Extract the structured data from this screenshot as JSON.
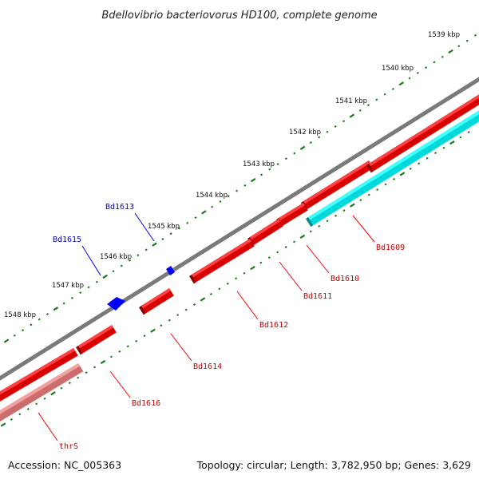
{
  "title": "Bdellovibrio bacteriovorus HD100, complete genome",
  "footer": {
    "accession": "Accession: NC_005363",
    "summary": "Topology: circular; Length: 3,782,950 bp; Genes: 3,629"
  },
  "colors": {
    "backbone": "#7a7a7a",
    "forward_gene": "#ff0000",
    "reverse_gene": "#0000ff",
    "cds_reverse": "#00ffff",
    "rna_gene": "#f08080",
    "tick": "#1a7a1a",
    "label_forward": "#cc0000",
    "label_reverse": "#0000cc"
  },
  "ruler": {
    "unit": "kbp",
    "labels": [
      "1539 kbp",
      "1540 kbp",
      "1541 kbp",
      "1542 kbp",
      "1543 kbp",
      "1544 kbp",
      "1545 kbp",
      "1546 kbp",
      "1547 kbp",
      "1548 kbp"
    ]
  },
  "genes": [
    {
      "name": "Bd1609",
      "strand": "forward",
      "color_key": "forward_gene"
    },
    {
      "name": "Bd1610",
      "strand": "forward",
      "color_key": "forward_gene"
    },
    {
      "name": "Bd1611",
      "strand": "forward",
      "color_key": "forward_gene"
    },
    {
      "name": "Bd1612",
      "strand": "forward",
      "color_key": "forward_gene"
    },
    {
      "name": "Bd1613",
      "strand": "reverse",
      "color_key": "reverse_gene"
    },
    {
      "name": "Bd1614",
      "strand": "forward",
      "color_key": "forward_gene"
    },
    {
      "name": "Bd1615",
      "strand": "reverse",
      "color_key": "reverse_gene"
    },
    {
      "name": "Bd1616",
      "strand": "forward",
      "color_key": "forward_gene"
    },
    {
      "name": "thrS",
      "strand": "forward",
      "color_key": "rna_gene"
    }
  ]
}
